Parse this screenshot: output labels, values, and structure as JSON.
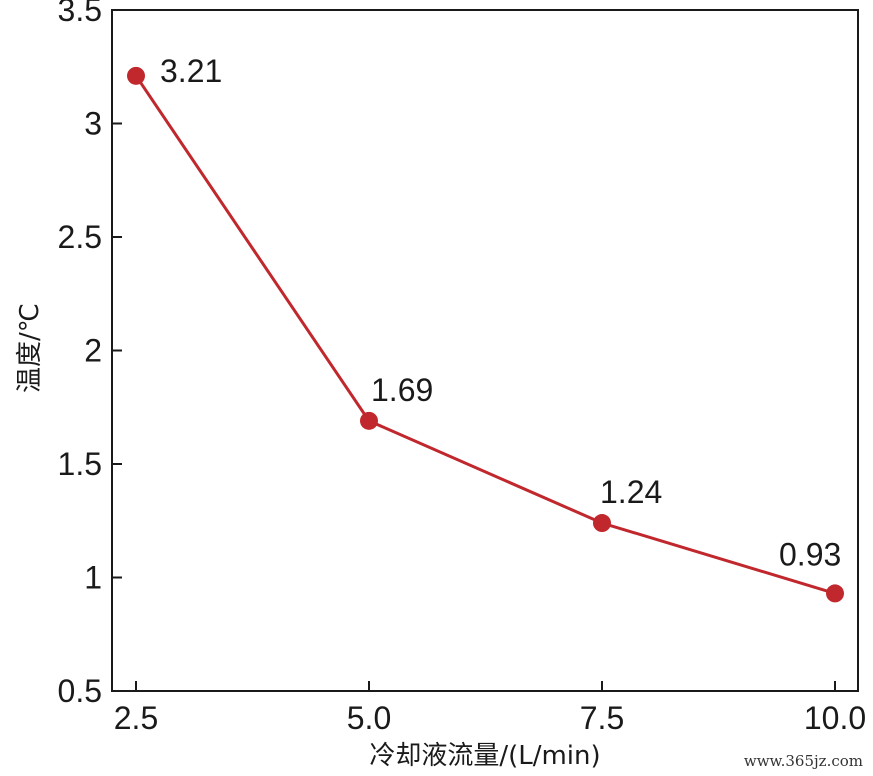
{
  "chart_data": {
    "type": "line",
    "title": "",
    "xlabel": "冷却液流量/(L/min)",
    "ylabel": "温度/℃",
    "x": [
      2.5,
      5.0,
      7.5,
      10.0
    ],
    "x_tick_labels": [
      "2.5",
      "5.0",
      "7.5",
      "10.0"
    ],
    "xlim": [
      2.5,
      10.0
    ],
    "ylim": [
      0.5,
      3.5
    ],
    "y_ticks": [
      0.5,
      1,
      1.5,
      2,
      2.5,
      3,
      3.5
    ],
    "y_tick_labels": [
      "0.5",
      "1",
      "1.5",
      "2",
      "2.5",
      "3",
      "3.5"
    ],
    "series": [
      {
        "values": [
          3.21,
          1.69,
          1.24,
          0.93
        ],
        "labels": [
          "3.21",
          "1.69",
          "1.24",
          "0.93"
        ]
      }
    ],
    "grid": false,
    "line_color": "#c0282d",
    "marker": "circle"
  },
  "watermark": "www.365jz.com"
}
